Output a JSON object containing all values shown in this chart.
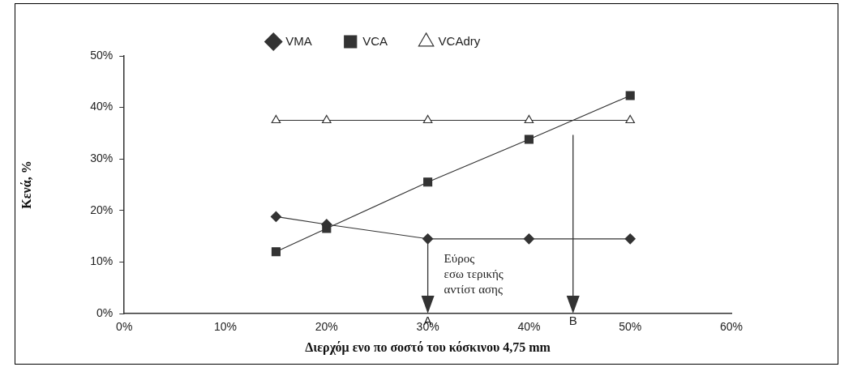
{
  "chart_data": {
    "type": "line",
    "xlabel": "Διερχόμ ενο πο σοστό του κόσκινου 4,75 mm",
    "ylabel": "Κενά, %",
    "x": [
      15,
      20,
      30,
      40,
      50
    ],
    "series": [
      {
        "name": "VMA",
        "color": "#333333",
        "marker": "diamond",
        "values": [
          18.8,
          17.3,
          14.5,
          14.5,
          14.5
        ]
      },
      {
        "name": "VCA",
        "color": "#333333",
        "marker": "square",
        "values": [
          12,
          16.5,
          25.5,
          33.8,
          42.3
        ]
      },
      {
        "name": "VCAdry",
        "color": "#333333",
        "marker": "triangle",
        "values": [
          37.5,
          37.5,
          37.5,
          37.5,
          37.5
        ]
      }
    ],
    "xlim": [
      0,
      60
    ],
    "xticks": [
      {
        "value": 0,
        "label": "0%"
      },
      {
        "value": 10,
        "label": "10%"
      },
      {
        "value": 20,
        "label": "20%"
      },
      {
        "value": 30,
        "label": "30%"
      },
      {
        "value": 40,
        "label": "40%"
      },
      {
        "value": 50,
        "label": "50%"
      },
      {
        "value": 60,
        "label": "60%"
      }
    ],
    "ylim": [
      0,
      50
    ],
    "yticks": [
      {
        "value": 0,
        "label": "0%"
      },
      {
        "value": 10,
        "label": "10%"
      },
      {
        "value": 20,
        "label": "20%"
      },
      {
        "value": 30,
        "label": "30%"
      },
      {
        "value": 40,
        "label": "40%"
      },
      {
        "value": 50,
        "label": "50%"
      }
    ],
    "annotations": [
      "A",
      "B",
      {
        "text": "Εύρος\nεσω τερικής\nαντίστ ασης",
        "x": 30,
        "y": 14.5
      }
    ],
    "grid": false,
    "legend": "top",
    "line_style": "solid"
  }
}
